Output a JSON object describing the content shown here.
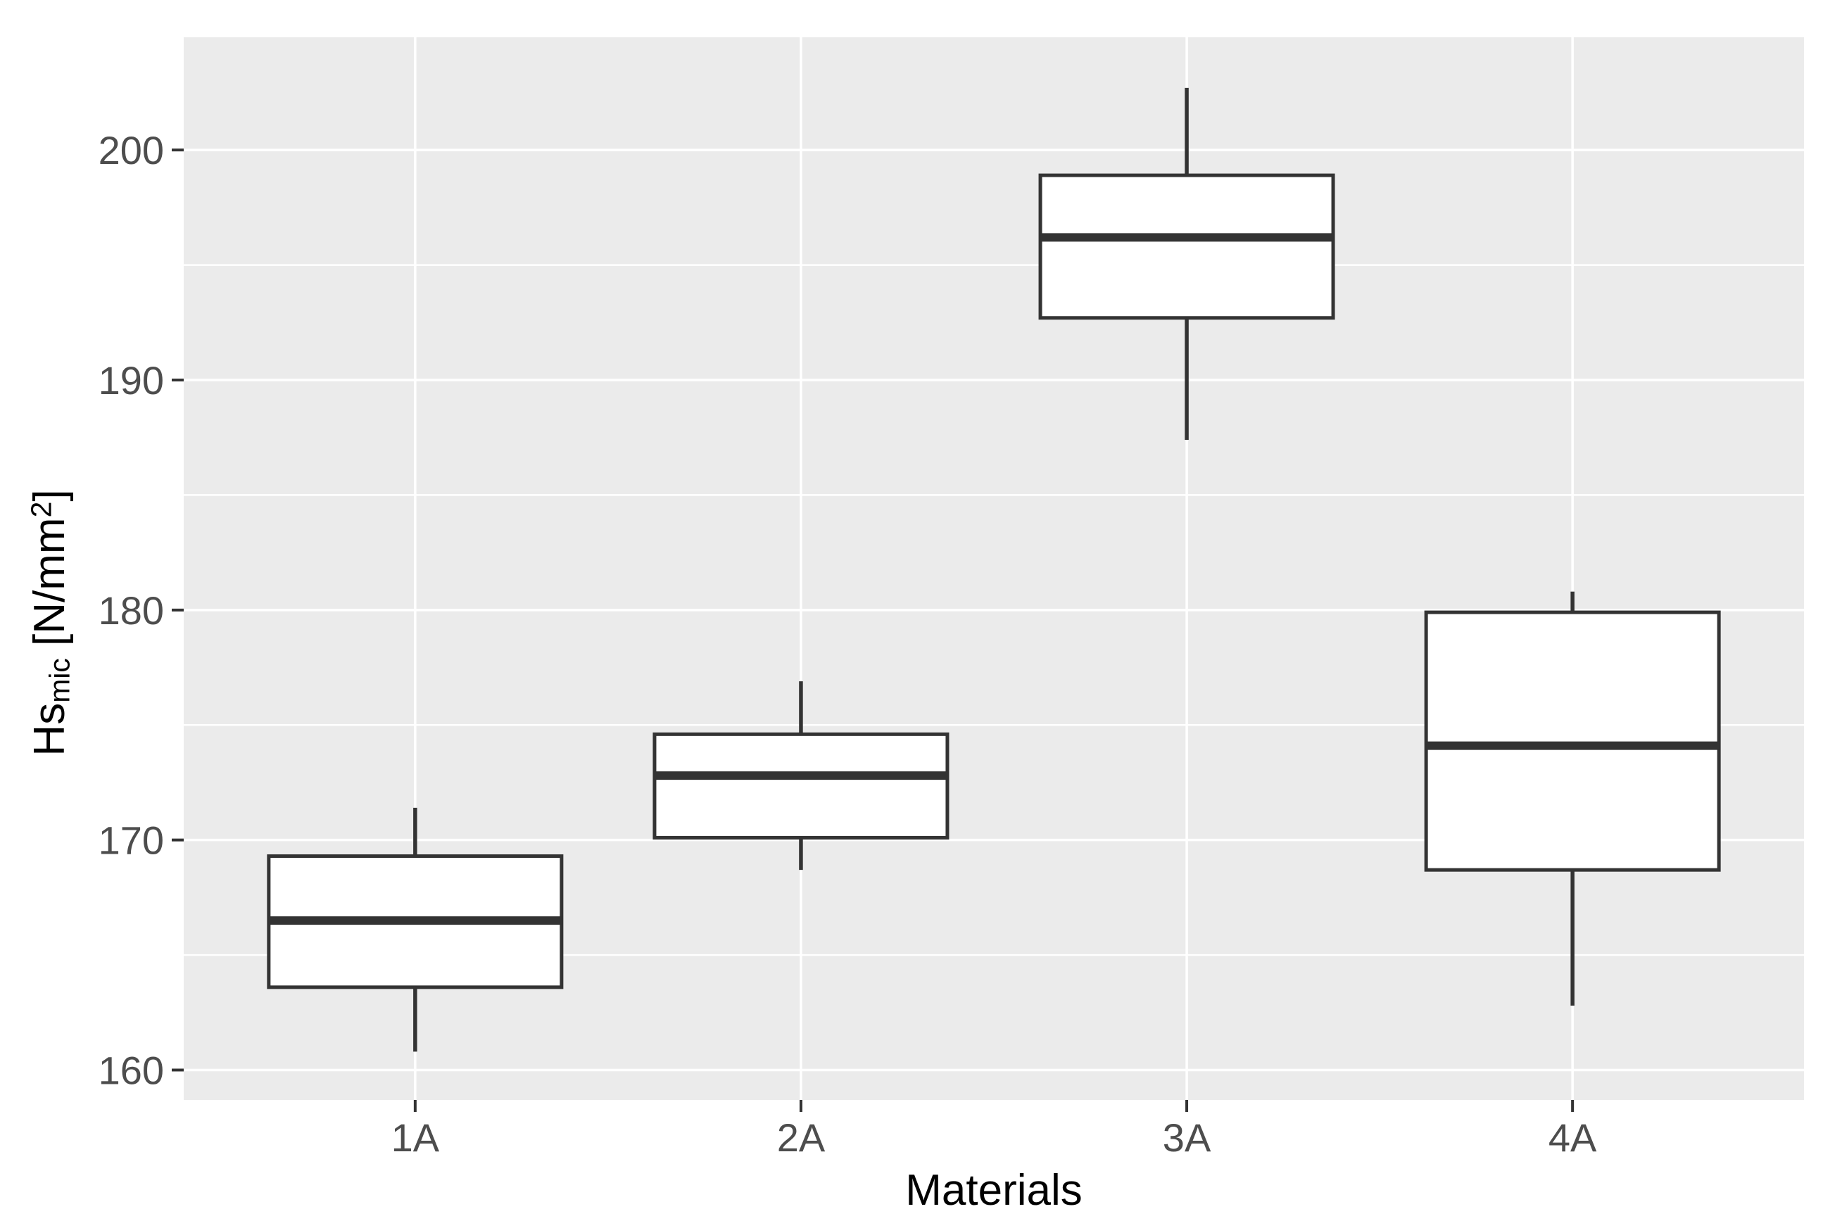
{
  "figure": {
    "kind": "ggplot-style boxplot",
    "background_color": "#FFFFFF",
    "panel_color": "#EBEBEB",
    "gridline_color": "#FFFFFF",
    "box_stroke_color": "#333333",
    "box_fill_color": "#FFFFFF",
    "tick_mark_color": "#333333",
    "tick_label_color": "#4D4D4D",
    "axis_title_color": "#000000"
  },
  "axes": {
    "x": {
      "title": "Materials",
      "tick_labels": [
        "1A",
        "2A",
        "3A",
        "4A"
      ]
    },
    "y": {
      "title": {
        "main": "Hs",
        "sub": "mic",
        "mid": " [N/mm",
        "sup": "2",
        "end": "]"
      },
      "title_plain": "Hsmic [N/mm2]",
      "tick_labels": [
        "160",
        "170",
        "180",
        "190",
        "200"
      ]
    }
  },
  "chart_data": {
    "type": "boxplot",
    "title": "",
    "xlabel": "Materials",
    "ylabel": "Hsmic [N/mm2]",
    "categories": [
      "1A",
      "2A",
      "3A",
      "4A"
    ],
    "series": [
      {
        "name": "1A",
        "whisker_low": 160.8,
        "q1": 163.6,
        "median": 166.5,
        "q3": 169.3,
        "whisker_high": 171.4
      },
      {
        "name": "2A",
        "whisker_low": 168.7,
        "q1": 170.1,
        "median": 172.8,
        "q3": 174.6,
        "whisker_high": 176.9
      },
      {
        "name": "3A",
        "whisker_low": 187.4,
        "q1": 192.7,
        "median": 196.2,
        "q3": 198.9,
        "whisker_high": 202.7
      },
      {
        "name": "4A",
        "whisker_low": 162.8,
        "q1": 168.7,
        "median": 174.1,
        "q3": 179.9,
        "whisker_high": 180.8
      }
    ],
    "ylim": [
      158.7,
      204.9
    ],
    "y_major_ticks": [
      160,
      170,
      180,
      190,
      200
    ],
    "y_minor_ticks": [
      165,
      175,
      185,
      195
    ],
    "grid": "major-and-minor-horizontal, major-vertical-at-categories",
    "legend_position": "none"
  }
}
